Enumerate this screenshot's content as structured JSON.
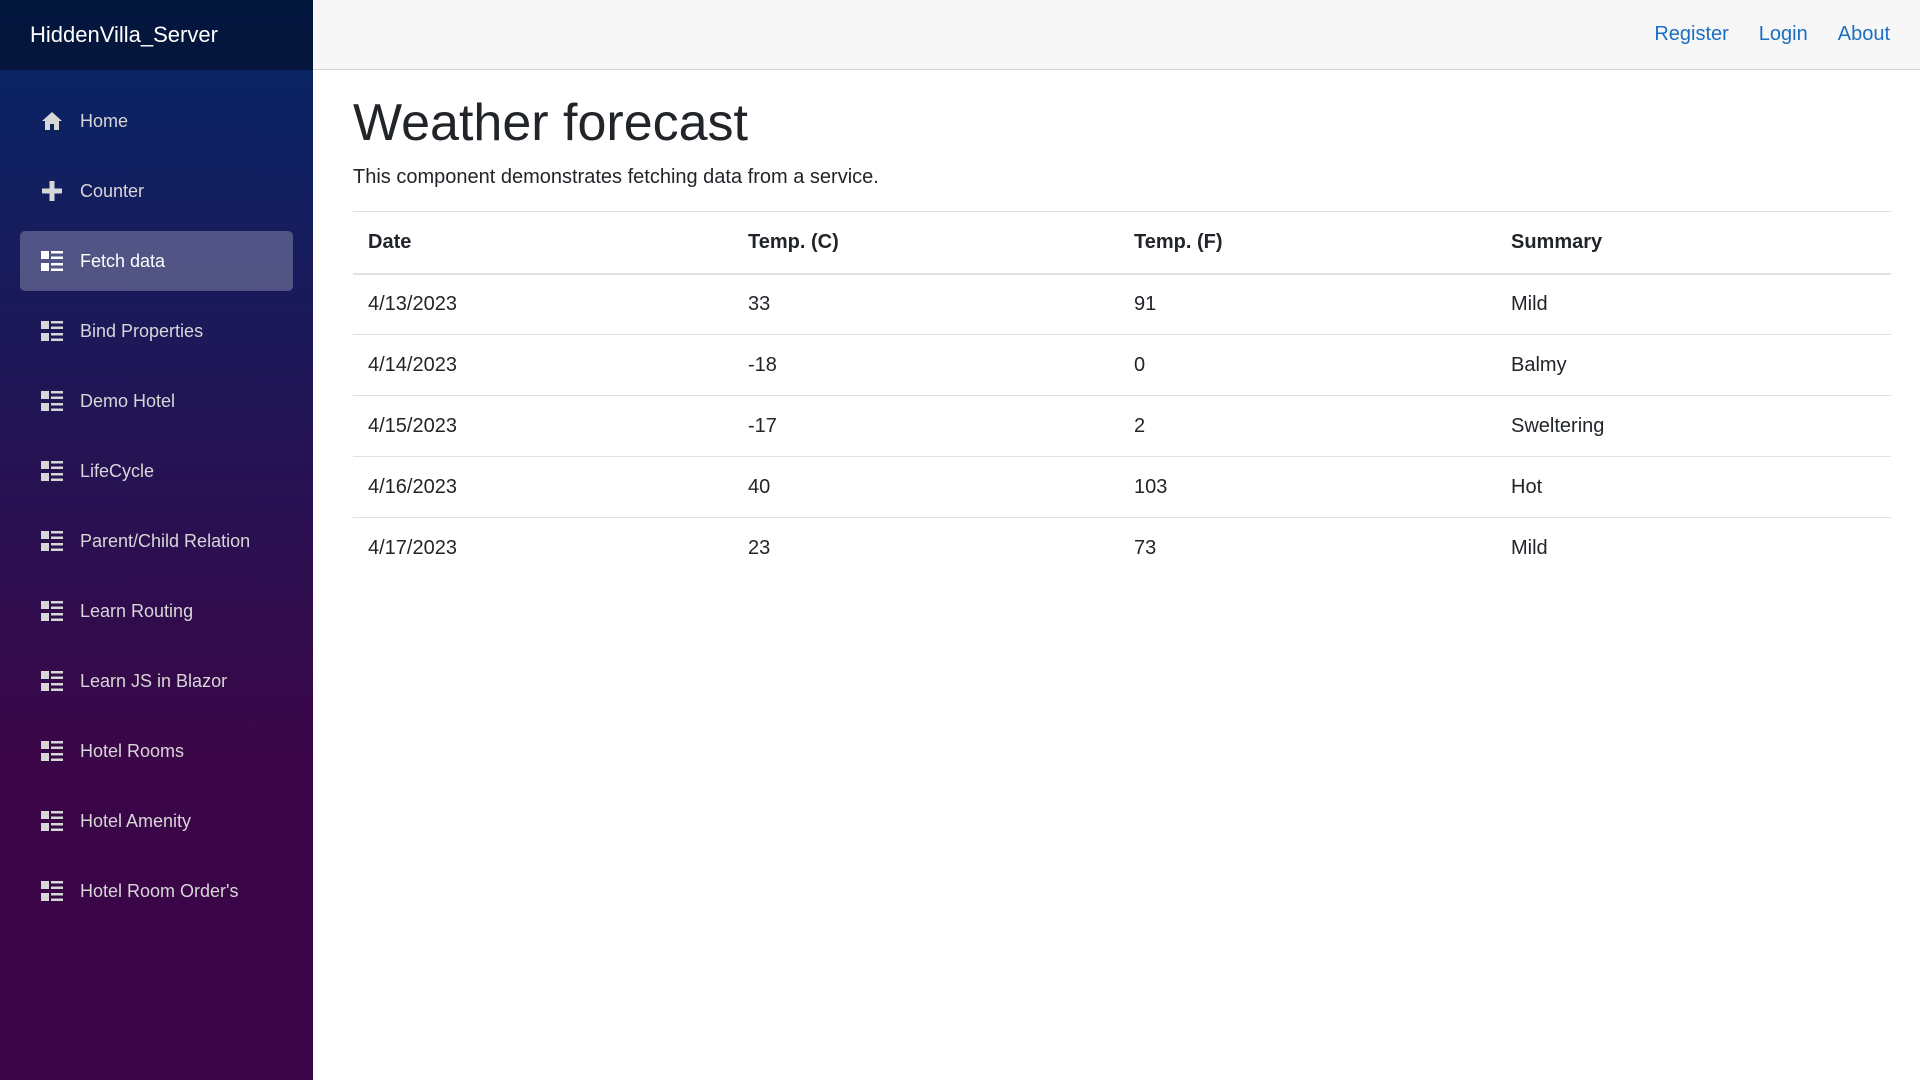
{
  "brand": "HiddenVilla_Server",
  "sidebar": {
    "items": [
      {
        "label": "Home",
        "icon": "home-icon",
        "active": false
      },
      {
        "label": "Counter",
        "icon": "plus-icon",
        "active": false
      },
      {
        "label": "Fetch data",
        "icon": "list-rich-icon",
        "active": true
      },
      {
        "label": "Bind Properties",
        "icon": "list-rich-icon",
        "active": false
      },
      {
        "label": "Demo Hotel",
        "icon": "list-rich-icon",
        "active": false
      },
      {
        "label": "LifeCycle",
        "icon": "list-rich-icon",
        "active": false
      },
      {
        "label": "Parent/Child Relation",
        "icon": "list-rich-icon",
        "active": false
      },
      {
        "label": "Learn Routing",
        "icon": "list-rich-icon",
        "active": false
      },
      {
        "label": "Learn JS in Blazor",
        "icon": "list-rich-icon",
        "active": false
      },
      {
        "label": "Hotel Rooms",
        "icon": "list-rich-icon",
        "active": false
      },
      {
        "label": "Hotel Amenity",
        "icon": "list-rich-icon",
        "active": false
      },
      {
        "label": "Hotel Room Order's",
        "icon": "list-rich-icon",
        "active": false
      }
    ]
  },
  "header": {
    "links": [
      "Register",
      "Login",
      "About"
    ]
  },
  "main": {
    "title": "Weather forecast",
    "description": "This component demonstrates fetching data from a service.",
    "table": {
      "columns": [
        "Date",
        "Temp. (C)",
        "Temp. (F)",
        "Summary"
      ],
      "rows": [
        [
          "4/13/2023",
          "33",
          "91",
          "Mild"
        ],
        [
          "4/14/2023",
          "-18",
          "0",
          "Balmy"
        ],
        [
          "4/15/2023",
          "-17",
          "2",
          "Sweltering"
        ],
        [
          "4/16/2023",
          "40",
          "103",
          "Hot"
        ],
        [
          "4/17/2023",
          "23",
          "73",
          "Mild"
        ]
      ]
    }
  },
  "colors": {
    "sidebar_gradient_top": "#052767",
    "sidebar_gradient_bottom": "#3a0647",
    "link": "#1b6ec2",
    "top_row_bg": "#f7f7f7"
  }
}
